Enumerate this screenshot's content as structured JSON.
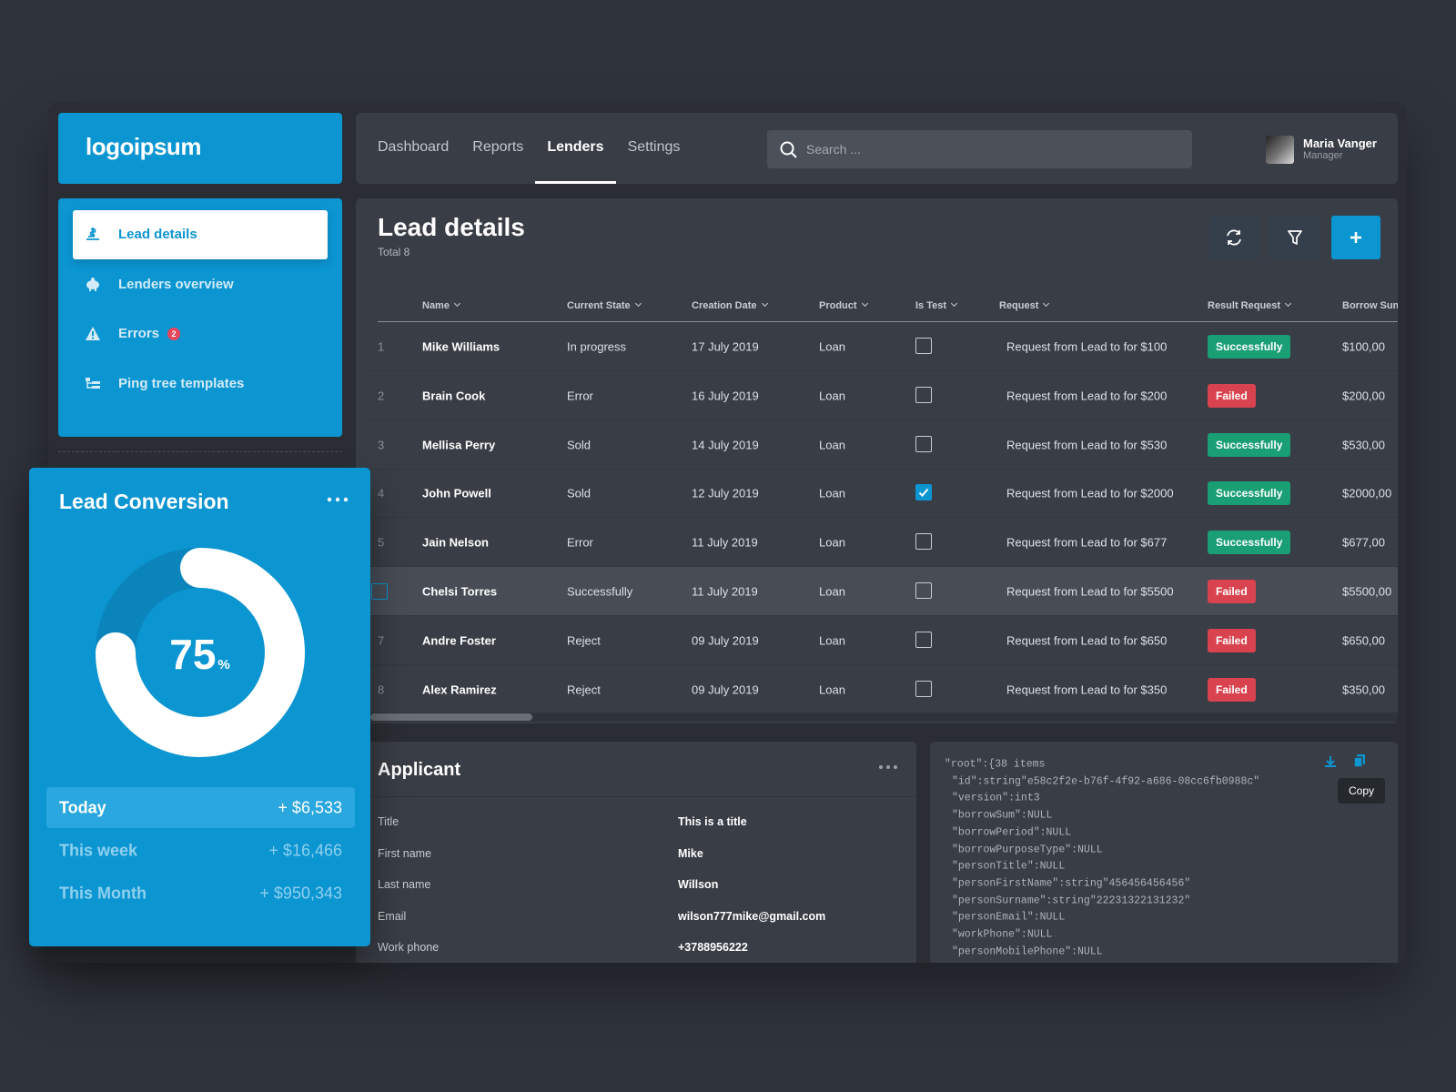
{
  "brand": "logoipsum",
  "nav": {
    "items": [
      "Dashboard",
      "Reports",
      "Lenders",
      "Settings"
    ],
    "active": 2
  },
  "search": {
    "placeholder": "Search ..."
  },
  "user": {
    "name": "Maria Vanger",
    "role": "Manager"
  },
  "sidebar": {
    "items": [
      {
        "label": "Lead details",
        "active": true
      },
      {
        "label": "Lenders overview"
      },
      {
        "label": "Errors",
        "badge": 2
      },
      {
        "label": "Ping tree templates"
      }
    ]
  },
  "conversion": {
    "title": "Lead Conversion",
    "value": 75,
    "unit": "%",
    "stats": [
      {
        "label": "Today",
        "amount": "+ $6,533",
        "active": true
      },
      {
        "label": "This week",
        "amount": "+ $16,466"
      },
      {
        "label": "This Month",
        "amount": "+ $950,343"
      }
    ]
  },
  "leads": {
    "title": "Lead details",
    "subtitle": "Total 8",
    "columns": [
      "Name",
      "Current State",
      "Creation Date",
      "Product",
      "Is Test",
      "Request",
      "Result Request",
      "Borrow Sum"
    ],
    "rows": [
      {
        "index": 1,
        "name": "Mike Williams",
        "state": "In progress",
        "date": "17 July 2019",
        "product": "Loan",
        "is_test": false,
        "request": "Request from Lead to for $100",
        "result": "Successfully",
        "result_color": "#1a9e74",
        "borrow_sum": "$100,00"
      },
      {
        "index": 2,
        "name": "Brain Cook",
        "state": "Error",
        "date": "16 July 2019",
        "product": "Loan",
        "is_test": false,
        "request": "Request from Lead to for $200",
        "result": "Failed",
        "result_color": "#d9434f",
        "borrow_sum": "$200,00"
      },
      {
        "index": 3,
        "name": "Mellisa Perry",
        "state": "Sold",
        "date": "14 July 2019",
        "product": "Loan",
        "is_test": false,
        "request": "Request from Lead to for $530",
        "result": "Successfully",
        "result_color": "#1a9e74",
        "borrow_sum": "$530,00"
      },
      {
        "index": 4,
        "name": "John Powell",
        "state": "Sold",
        "date": "12 July 2019",
        "product": "Loan",
        "is_test": true,
        "request": "Request from Lead to for $2000",
        "result": "Successfully",
        "result_color": "#1a9e74",
        "borrow_sum": "$2000,00"
      },
      {
        "index": 5,
        "name": "Jain Nelson",
        "state": "Error",
        "date": "11 July 2019",
        "product": "Loan",
        "is_test": false,
        "request": "Request from Lead to for $677",
        "result": "Successfully",
        "result_color": "#1a9e74",
        "borrow_sum": "$677,00"
      },
      {
        "highlighted": true,
        "name": "Chelsi Torres",
        "state": "Successfully",
        "date": "11 July 2019",
        "product": "Loan",
        "is_test": false,
        "request": "Request from Lead to for $5500",
        "result": "Failed",
        "result_color": "#d9434f",
        "borrow_sum": "$5500,00"
      },
      {
        "index": 7,
        "name": "Andre Foster",
        "state": "Reject",
        "date": "09 July 2019",
        "product": "Loan",
        "is_test": false,
        "request": "Request from Lead to for $650",
        "result": "Failed",
        "result_color": "#d9434f",
        "borrow_sum": "$650,00"
      },
      {
        "index": 8,
        "name": "Alex Ramirez",
        "state": "Reject",
        "date": "09 July 2019",
        "product": "Loan",
        "is_test": false,
        "request": "Request from Lead to for $350",
        "result": "Failed",
        "result_color": "#d9434f",
        "borrow_sum": "$350,00"
      }
    ]
  },
  "applicant": {
    "title": "Applicant",
    "fields": [
      {
        "label": "Title",
        "value": "This is a title"
      },
      {
        "label": "First name",
        "value": "Mike"
      },
      {
        "label": "Last name",
        "value": "Willson"
      },
      {
        "label": "Email",
        "value": "wilson777mike@gmail.com"
      },
      {
        "label": "Work phone",
        "value": "+3788956222"
      }
    ]
  },
  "json_view": {
    "tooltip": "Copy",
    "lines": [
      "\"root\":{38 items",
      "\"id\":string\"e58c2f2e-b76f-4f92-a686-08cc6fb0988c\"",
      "\"version\":int3",
      "\"borrowSum\":NULL",
      "\"borrowPeriod\":NULL",
      "\"borrowPurposeType\":NULL",
      "\"personTitle\":NULL",
      "\"personFirstName\":string\"456456456456\"",
      "\"personSurname\":string\"22231322131232\"",
      "\"personEmail\":NULL",
      "\"workPhone\":NULL",
      "\"personMobilePhone\":NULL"
    ]
  }
}
